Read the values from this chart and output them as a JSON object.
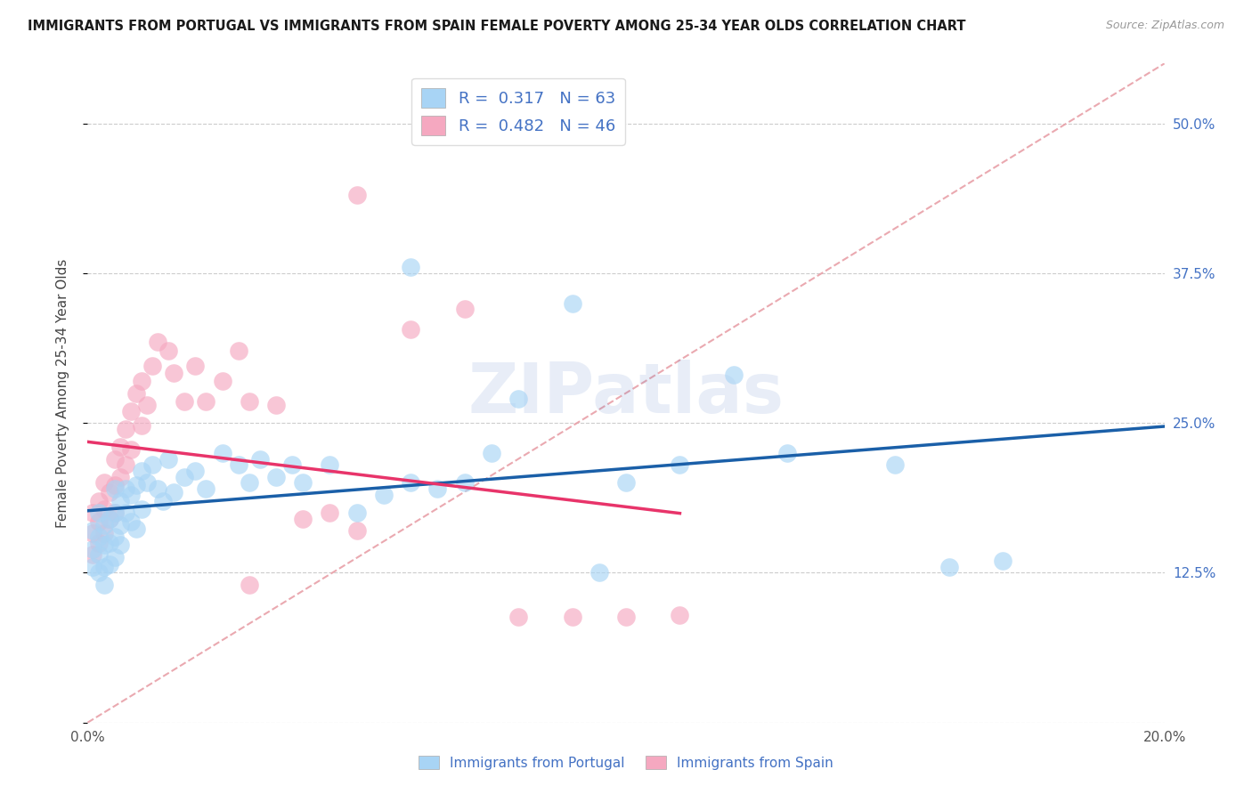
{
  "title": "IMMIGRANTS FROM PORTUGAL VS IMMIGRANTS FROM SPAIN FEMALE POVERTY AMONG 25-34 YEAR OLDS CORRELATION CHART",
  "source": "Source: ZipAtlas.com",
  "ylabel": "Female Poverty Among 25-34 Year Olds",
  "xlim": [
    0.0,
    0.2
  ],
  "ylim": [
    0.0,
    0.55
  ],
  "xticks": [
    0.0,
    0.05,
    0.1,
    0.15,
    0.2
  ],
  "xticklabels": [
    "0.0%",
    "",
    "",
    "",
    "20.0%"
  ],
  "ytick_values": [
    0.0,
    0.125,
    0.25,
    0.375,
    0.5
  ],
  "yticklabels_right": [
    "",
    "12.5%",
    "25.0%",
    "37.5%",
    "50.0%"
  ],
  "R_portugal": 0.317,
  "N_portugal": 63,
  "R_spain": 0.482,
  "N_spain": 46,
  "color_portugal": "#A8D4F5",
  "color_spain": "#F5A8C0",
  "line_color_portugal": "#1A5FA8",
  "line_color_spain": "#E8346A",
  "diagonal_color": "#E8A0A8",
  "watermark": "ZIPatlas",
  "portugal_x": [
    0.001,
    0.001,
    0.001,
    0.002,
    0.002,
    0.002,
    0.002,
    0.003,
    0.003,
    0.003,
    0.003,
    0.004,
    0.004,
    0.004,
    0.005,
    0.005,
    0.005,
    0.005,
    0.006,
    0.006,
    0.006,
    0.007,
    0.007,
    0.008,
    0.008,
    0.009,
    0.009,
    0.01,
    0.01,
    0.011,
    0.012,
    0.013,
    0.014,
    0.015,
    0.016,
    0.018,
    0.02,
    0.022,
    0.025,
    0.028,
    0.03,
    0.032,
    0.035,
    0.038,
    0.04,
    0.045,
    0.05,
    0.055,
    0.06,
    0.065,
    0.07,
    0.075,
    0.08,
    0.09,
    0.095,
    0.1,
    0.11,
    0.12,
    0.13,
    0.15,
    0.16,
    0.17,
    0.06
  ],
  "portugal_y": [
    0.16,
    0.145,
    0.13,
    0.175,
    0.155,
    0.14,
    0.125,
    0.165,
    0.148,
    0.13,
    0.115,
    0.17,
    0.15,
    0.132,
    0.195,
    0.175,
    0.155,
    0.138,
    0.185,
    0.165,
    0.148,
    0.195,
    0.175,
    0.19,
    0.168,
    0.198,
    0.162,
    0.21,
    0.178,
    0.2,
    0.215,
    0.195,
    0.185,
    0.22,
    0.192,
    0.205,
    0.21,
    0.195,
    0.225,
    0.215,
    0.2,
    0.22,
    0.205,
    0.215,
    0.2,
    0.215,
    0.175,
    0.19,
    0.2,
    0.195,
    0.2,
    0.225,
    0.27,
    0.35,
    0.125,
    0.2,
    0.215,
    0.29,
    0.225,
    0.215,
    0.13,
    0.135,
    0.38
  ],
  "spain_x": [
    0.001,
    0.001,
    0.001,
    0.002,
    0.002,
    0.002,
    0.003,
    0.003,
    0.003,
    0.004,
    0.004,
    0.005,
    0.005,
    0.005,
    0.006,
    0.006,
    0.007,
    0.007,
    0.008,
    0.008,
    0.009,
    0.01,
    0.01,
    0.011,
    0.012,
    0.013,
    0.015,
    0.016,
    0.018,
    0.02,
    0.022,
    0.025,
    0.028,
    0.03,
    0.035,
    0.04,
    0.045,
    0.05,
    0.06,
    0.07,
    0.08,
    0.09,
    0.1,
    0.11,
    0.05,
    0.03
  ],
  "spain_y": [
    0.175,
    0.158,
    0.14,
    0.185,
    0.168,
    0.15,
    0.2,
    0.178,
    0.158,
    0.192,
    0.17,
    0.22,
    0.198,
    0.175,
    0.23,
    0.205,
    0.245,
    0.215,
    0.26,
    0.228,
    0.275,
    0.285,
    0.248,
    0.265,
    0.298,
    0.318,
    0.31,
    0.292,
    0.268,
    0.298,
    0.268,
    0.285,
    0.31,
    0.268,
    0.265,
    0.17,
    0.175,
    0.44,
    0.328,
    0.345,
    0.088,
    0.088,
    0.088,
    0.09,
    0.16,
    0.115
  ]
}
